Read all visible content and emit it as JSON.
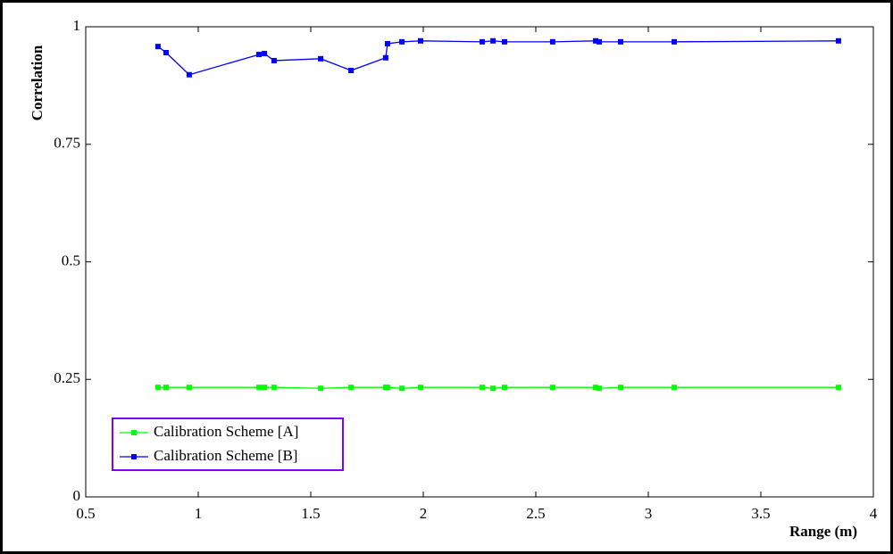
{
  "chart_data": {
    "type": "line",
    "x_label": "Range (m)",
    "y_label": "Correlation",
    "x": [
      0.821,
      0.857,
      0.96,
      1.27,
      1.294,
      1.337,
      1.544,
      1.679,
      1.833,
      1.841,
      1.905,
      1.988,
      2.262,
      2.31,
      2.361,
      2.575,
      2.766,
      2.782,
      2.877,
      3.115,
      3.845
    ],
    "series": [
      {
        "name": "Calibration Scheme [A]",
        "color": "#00ff00",
        "values": [
          0.233,
          0.233,
          0.233,
          0.233,
          0.233,
          0.233,
          0.231,
          0.233,
          0.233,
          0.233,
          0.231,
          0.233,
          0.233,
          0.231,
          0.233,
          0.233,
          0.233,
          0.231,
          0.233,
          0.233,
          0.233
        ]
      },
      {
        "name": "Calibration Scheme [B]",
        "color": "#0000ff",
        "values": [
          0.958,
          0.945,
          0.898,
          0.941,
          0.943,
          0.928,
          0.932,
          0.907,
          0.934,
          0.964,
          0.968,
          0.97,
          0.968,
          0.97,
          0.968,
          0.968,
          0.97,
          0.968,
          0.968,
          0.968,
          0.97
        ]
      }
    ],
    "xlim": [
      0.5,
      4
    ],
    "xticks": [
      0.5,
      1,
      1.5,
      2,
      2.5,
      3,
      3.5,
      4
    ],
    "ylim": [
      0,
      1
    ],
    "yticks": [
      0,
      0.25,
      0.5,
      0.75,
      1
    ],
    "legend": "lower left",
    "legend_border_color": "#7f00ff"
  }
}
